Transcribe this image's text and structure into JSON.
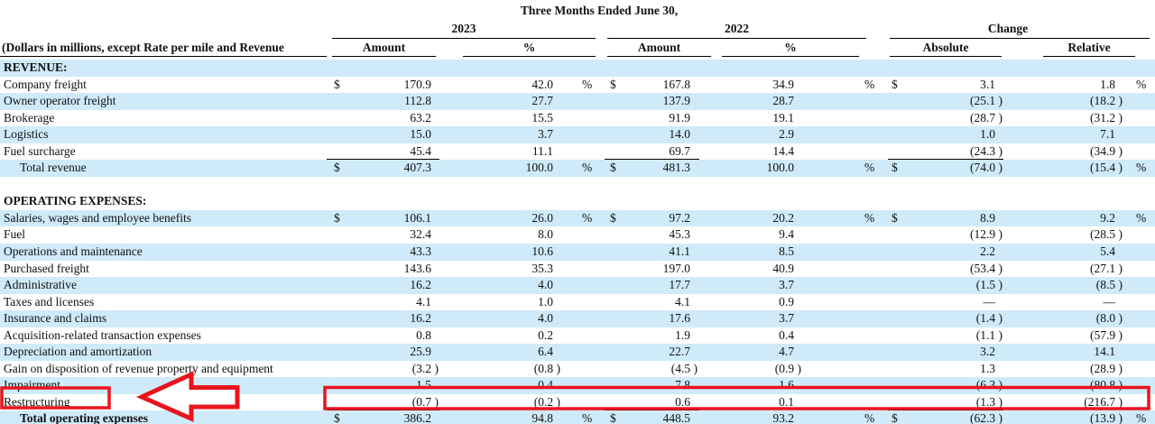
{
  "header": {
    "title": "Three Months Ended June 30,",
    "note": "(Dollars in millions, except Rate per mile and Revenue",
    "groups": {
      "g2023": "2023",
      "g2022": "2022",
      "gchange": "Change"
    },
    "columns": {
      "amount_2023": "Amount",
      "pct_2023": "%",
      "amount_2022": "Amount",
      "pct_2022": "%",
      "absolute": "Absolute",
      "relative": "Relative"
    }
  },
  "colors": {
    "stripe": "#cfeaf8",
    "annotation_red": "#e9141d",
    "text": "#111111"
  },
  "annotations": {
    "highlighted_row": "Restructuring",
    "arrow_direction": "left",
    "description": "red box around Restructuring label, red left arrow, red box around Restructuring values"
  },
  "table": {
    "rows": [
      {
        "label": "REVENUE:",
        "type": "section",
        "bold": true,
        "shaded": true
      },
      {
        "label": "Company freight",
        "shaded": false,
        "d1": "$",
        "a1": "170.9",
        "p1": "42.0",
        "s1": "%",
        "d2": "$",
        "a2": "167.8",
        "p2": "34.9",
        "s2": "%",
        "d3": "$",
        "a3": "3.1",
        "r3": "1.8",
        "s3": "%"
      },
      {
        "label": "Owner operator freight",
        "shaded": true,
        "a1": "112.8",
        "p1": "27.7",
        "a2": "137.9",
        "p2": "28.7",
        "a3": "(25.1 )",
        "r3": "(18.2 )"
      },
      {
        "label": "Brokerage",
        "shaded": false,
        "a1": "63.2",
        "p1": "15.5",
        "a2": "91.9",
        "p2": "19.1",
        "a3": "(28.7 )",
        "r3": "(31.2 )"
      },
      {
        "label": "Logistics",
        "shaded": true,
        "a1": "15.0",
        "p1": "3.7",
        "a2": "14.0",
        "p2": "2.9",
        "a3": "1.0",
        "r3": "7.1"
      },
      {
        "label": "Fuel surcharge",
        "shaded": false,
        "a1": "45.4",
        "p1": "11.1",
        "a2": "69.7",
        "p2": "14.4",
        "a3": "(24.3 )",
        "r3": "(34.9 )",
        "rule_below": true
      },
      {
        "label": "Total revenue",
        "indent": true,
        "shaded": true,
        "d1": "$",
        "a1": "407.3",
        "p1": "100.0",
        "s1": "%",
        "d2": "$",
        "a2": "481.3",
        "p2": "100.0",
        "s2": "%",
        "d3": "$",
        "a3": "(74.0 )",
        "r3": "(15.4 )",
        "s3": "%"
      },
      {
        "type": "spacer",
        "shaded": false
      },
      {
        "label": "OPERATING EXPENSES:",
        "type": "section",
        "bold": true,
        "shaded": false
      },
      {
        "label": "Salaries, wages and employee benefits",
        "shaded": true,
        "d1": "$",
        "a1": "106.1",
        "p1": "26.0",
        "s1": "%",
        "d2": "$",
        "a2": "97.2",
        "p2": "20.2",
        "s2": "%",
        "d3": "$",
        "a3": "8.9",
        "r3": "9.2",
        "s3": "%"
      },
      {
        "label": "Fuel",
        "shaded": false,
        "a1": "32.4",
        "p1": "8.0",
        "a2": "45.3",
        "p2": "9.4",
        "a3": "(12.9 )",
        "r3": "(28.5 )"
      },
      {
        "label": "Operations and maintenance",
        "shaded": true,
        "a1": "43.3",
        "p1": "10.6",
        "a2": "41.1",
        "p2": "8.5",
        "a3": "2.2",
        "r3": "5.4"
      },
      {
        "label": "Purchased freight",
        "shaded": false,
        "a1": "143.6",
        "p1": "35.3",
        "a2": "197.0",
        "p2": "40.9",
        "a3": "(53.4 )",
        "r3": "(27.1 )"
      },
      {
        "label": "Administrative",
        "shaded": true,
        "a1": "16.2",
        "p1": "4.0",
        "a2": "17.7",
        "p2": "3.7",
        "a3": "(1.5 )",
        "r3": "(8.5 )"
      },
      {
        "label": "Taxes and licenses",
        "shaded": false,
        "a1": "4.1",
        "p1": "1.0",
        "a2": "4.1",
        "p2": "0.9",
        "a3": "—",
        "r3": "—"
      },
      {
        "label": "Insurance and claims",
        "shaded": true,
        "a1": "16.2",
        "p1": "4.0",
        "a2": "17.6",
        "p2": "3.7",
        "a3": "(1.4 )",
        "r3": "(8.0 )"
      },
      {
        "label": "Acquisition-related transaction expenses",
        "shaded": false,
        "a1": "0.8",
        "p1": "0.2",
        "a2": "1.9",
        "p2": "0.4",
        "a3": "(1.1 )",
        "r3": "(57.9 )"
      },
      {
        "label": "Depreciation and amortization",
        "shaded": true,
        "a1": "25.9",
        "p1": "6.4",
        "a2": "22.7",
        "p2": "4.7",
        "a3": "3.2",
        "r3": "14.1"
      },
      {
        "label": "Gain on disposition of revenue property and equipment",
        "shaded": false,
        "a1": "(3.2 )",
        "p1": "(0.8 )",
        "a2": "(4.5 )",
        "p2": "(0.9 )",
        "a3": "1.3",
        "r3": "(28.9 )"
      },
      {
        "label": "Impairment",
        "shaded": true,
        "a1": "1.5",
        "p1": "0.4",
        "a2": "7.8",
        "p2": "1.6",
        "a3": "(6.3 )",
        "r3": "(80.8 )"
      },
      {
        "label": "Restructuring",
        "shaded": false,
        "underline": true,
        "a1": "(0.7 )",
        "p1": "(0.2 )",
        "a2": "0.6",
        "p2": "0.1",
        "a3": "(1.3 )",
        "r3": "(216.7 )",
        "rule_below": true
      },
      {
        "label": "Total operating expenses",
        "indent": true,
        "bold": true,
        "shaded": true,
        "d1": "$",
        "a1": "386.2",
        "p1": "94.8",
        "s1": "%",
        "d2": "$",
        "a2": "448.5",
        "p2": "93.2",
        "s2": "%",
        "d3": "$",
        "a3": "(62.3 )",
        "r3": "(13.9 )",
        "s3": "%",
        "rule_bottom": true
      }
    ]
  }
}
